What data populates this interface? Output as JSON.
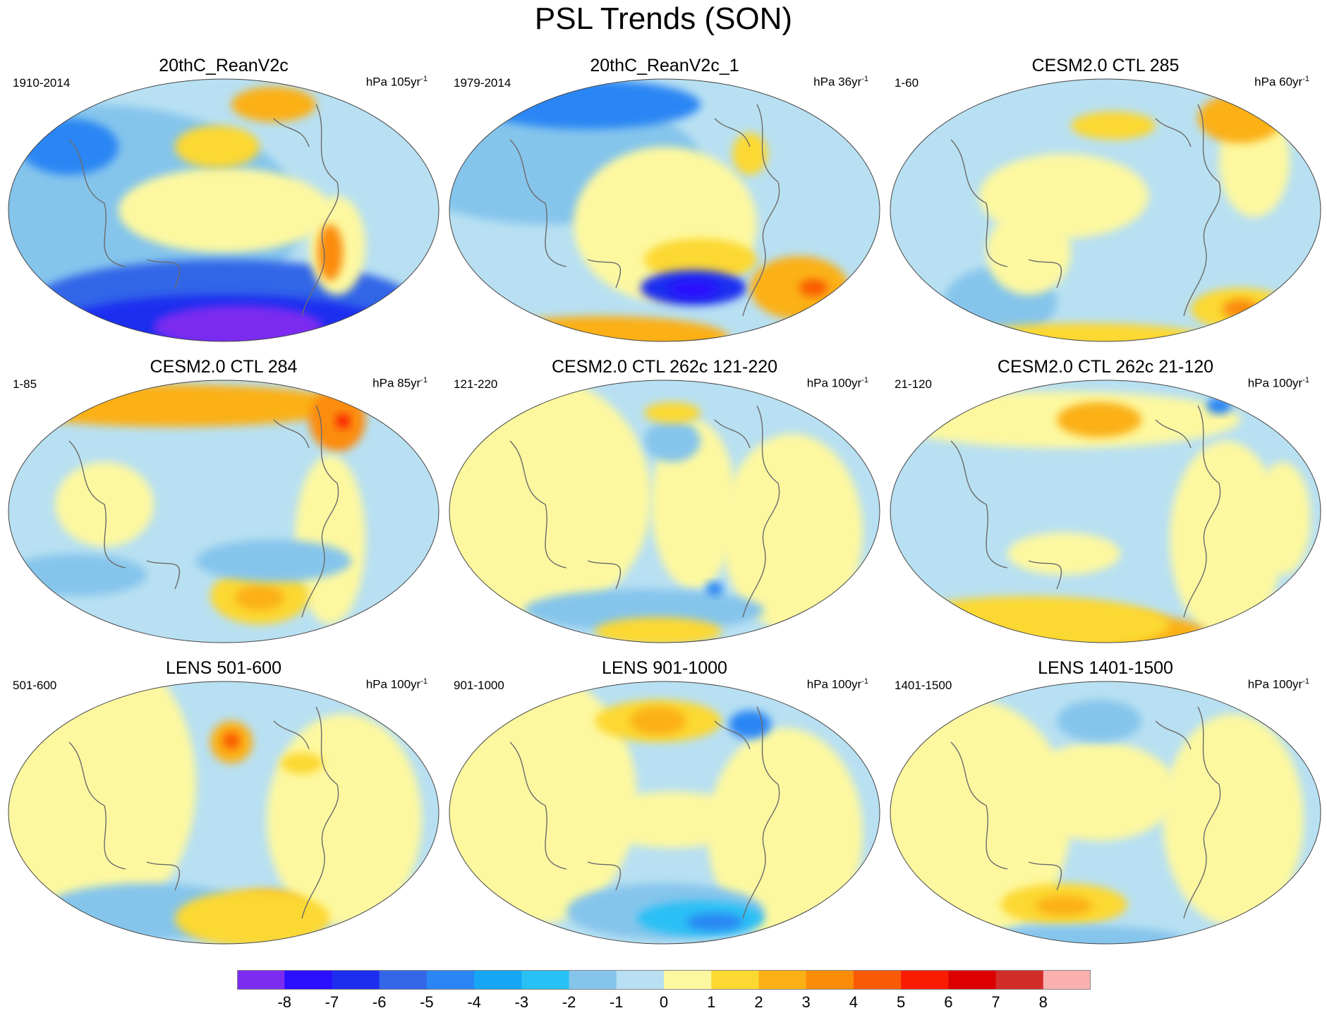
{
  "title": "PSL Trends (SON)",
  "panels": [
    {
      "title": "20thC_ReanV2c",
      "period": "1910-2014",
      "units": "hPa 105yr",
      "exp": "-1"
    },
    {
      "title": "20thC_ReanV2c_1",
      "period": "1979-2014",
      "units": "hPa 36yr",
      "exp": "-1"
    },
    {
      "title": "CESM2.0 CTL 285",
      "period": "1-60",
      "units": "hPa 60yr",
      "exp": "-1"
    },
    {
      "title": "CESM2.0 CTL 284",
      "period": "1-85",
      "units": "hPa 85yr",
      "exp": "-1"
    },
    {
      "title": "CESM2.0 CTL 262c 121-220",
      "period": "121-220",
      "units": "hPa 100yr",
      "exp": "-1"
    },
    {
      "title": "CESM2.0 CTL 262c 21-120",
      "period": "21-120",
      "units": "hPa 100yr",
      "exp": "-1"
    },
    {
      "title": "LENS 501-600",
      "period": "501-600",
      "units": "hPa 100yr",
      "exp": "-1"
    },
    {
      "title": "LENS 901-1000",
      "period": "901-1000",
      "units": "hPa 100yr",
      "exp": "-1"
    },
    {
      "title": "LENS 1401-1500",
      "period": "1401-1500",
      "units": "hPa 100yr",
      "exp": "-1"
    }
  ],
  "colorbar": {
    "labels": [
      "-8",
      "-7",
      "-6",
      "-5",
      "-4",
      "-3",
      "-2",
      "-1",
      "0",
      "1",
      "2",
      "3",
      "4",
      "5",
      "6",
      "7",
      "8"
    ],
    "colors": [
      "#7b2cf0",
      "#2a10ff",
      "#1e2ef0",
      "#3366e8",
      "#2a86f4",
      "#16a6f4",
      "#29c0f5",
      "#85c5ec",
      "#b8e0f2",
      "#fdf8a0",
      "#fcd832",
      "#fbb016",
      "#fb8c08",
      "#fa5a04",
      "#fa1c00",
      "#dc0000",
      "#d22c28",
      "#fbb0b0"
    ]
  }
}
